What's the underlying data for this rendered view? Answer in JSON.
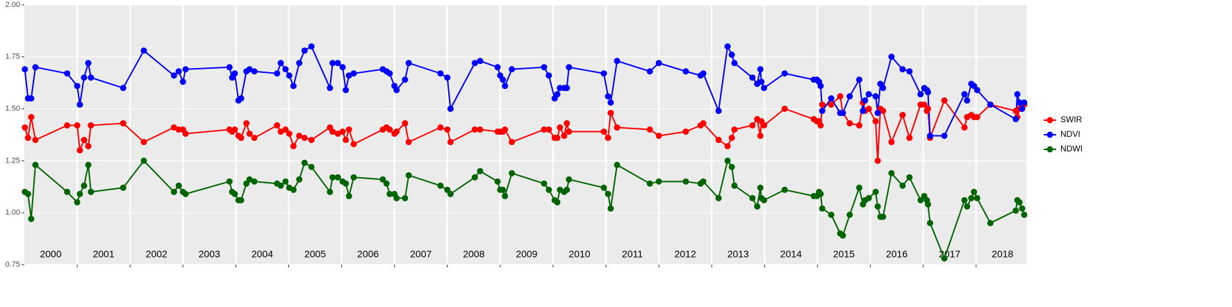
{
  "chart_data": {
    "type": "line",
    "x": [
      2000.01,
      2000.07,
      2000.13,
      2000.21,
      2000.81,
      2001.0,
      2001.05,
      2001.13,
      2001.21,
      2001.26,
      2001.87,
      2002.26,
      2002.83,
      2002.92,
      2003.0,
      2003.05,
      2003.88,
      2003.93,
      2003.98,
      2004.05,
      2004.1,
      2004.2,
      2004.26,
      2004.35,
      2004.78,
      2004.85,
      2004.94,
      2005.01,
      2005.09,
      2005.2,
      2005.3,
      2005.43,
      2005.78,
      2005.83,
      2005.93,
      2006.02,
      2006.08,
      2006.14,
      2006.23,
      2006.78,
      2006.85,
      2006.91,
      2007.0,
      2007.04,
      2007.2,
      2007.27,
      2007.87,
      2008.0,
      2008.06,
      2008.52,
      2008.62,
      2008.95,
      2009.0,
      2009.05,
      2009.09,
      2009.22,
      2009.83,
      2009.92,
      2010.03,
      2010.08,
      2010.13,
      2010.21,
      2010.26,
      2010.3,
      2010.96,
      2011.04,
      2011.09,
      2011.21,
      2011.83,
      2012.0,
      2012.51,
      2012.79,
      2012.84,
      2013.13,
      2013.3,
      2013.38,
      2013.43,
      2013.77,
      2013.86,
      2013.92,
      2013.94,
      2013.99,
      2014.38,
      2014.93,
      2014.99,
      2015.03,
      2015.06,
      2015.09,
      2015.26,
      2015.43,
      2015.48,
      2015.61,
      2015.79,
      2015.86,
      2015.9,
      2015.97,
      2016.1,
      2016.14,
      2016.19,
      2016.24,
      2016.4,
      2016.61,
      2016.74,
      2016.95,
      2017.02,
      2017.07,
      2017.09,
      2017.13,
      2017.4,
      2017.78,
      2017.83,
      2017.91,
      2017.96,
      2018.02,
      2018.27,
      2018.75,
      2018.78,
      2018.82,
      2018.87,
      2018.91
    ],
    "series": [
      {
        "name": "SWIR",
        "color": "#ff0000",
        "values": [
          1.41,
          1.36,
          1.46,
          1.35,
          1.42,
          1.42,
          1.3,
          1.35,
          1.32,
          1.42,
          1.43,
          1.34,
          1.41,
          1.4,
          1.4,
          1.38,
          1.4,
          1.39,
          1.4,
          1.37,
          1.36,
          1.43,
          1.38,
          1.36,
          1.42,
          1.39,
          1.4,
          1.38,
          1.32,
          1.37,
          1.36,
          1.35,
          1.41,
          1.39,
          1.38,
          1.39,
          1.35,
          1.4,
          1.33,
          1.4,
          1.41,
          1.4,
          1.38,
          1.39,
          1.43,
          1.34,
          1.41,
          1.4,
          1.34,
          1.4,
          1.4,
          1.39,
          1.39,
          1.39,
          1.4,
          1.34,
          1.4,
          1.4,
          1.36,
          1.36,
          1.41,
          1.37,
          1.43,
          1.39,
          1.39,
          1.36,
          1.48,
          1.41,
          1.4,
          1.37,
          1.39,
          1.42,
          1.43,
          1.35,
          1.32,
          1.36,
          1.4,
          1.42,
          1.45,
          1.37,
          1.44,
          1.42,
          1.5,
          1.45,
          1.44,
          1.44,
          1.42,
          1.52,
          1.52,
          1.56,
          1.48,
          1.43,
          1.42,
          1.53,
          1.49,
          1.5,
          1.44,
          1.25,
          1.5,
          1.49,
          1.34,
          1.47,
          1.36,
          1.52,
          1.52,
          1.49,
          1.5,
          1.36,
          1.54,
          1.41,
          1.46,
          1.47,
          1.46,
          1.46,
          1.52,
          1.49,
          1.46,
          1.5,
          1.5,
          1.52
        ]
      },
      {
        "name": "NDVI",
        "color": "#0000ff",
        "values": [
          1.69,
          1.55,
          1.55,
          1.7,
          1.67,
          1.61,
          1.52,
          1.65,
          1.72,
          1.65,
          1.6,
          1.78,
          1.66,
          1.68,
          1.63,
          1.69,
          1.7,
          1.65,
          1.67,
          1.54,
          1.55,
          1.68,
          1.69,
          1.68,
          1.67,
          1.72,
          1.69,
          1.66,
          1.61,
          1.72,
          1.78,
          1.8,
          1.6,
          1.72,
          1.72,
          1.7,
          1.59,
          1.66,
          1.67,
          1.69,
          1.68,
          1.67,
          1.61,
          1.59,
          1.64,
          1.72,
          1.67,
          1.65,
          1.5,
          1.72,
          1.73,
          1.7,
          1.66,
          1.64,
          1.61,
          1.69,
          1.7,
          1.66,
          1.55,
          1.57,
          1.6,
          1.6,
          1.6,
          1.7,
          1.67,
          1.56,
          1.53,
          1.73,
          1.68,
          1.72,
          1.68,
          1.66,
          1.67,
          1.49,
          1.8,
          1.76,
          1.72,
          1.65,
          1.62,
          1.69,
          1.63,
          1.6,
          1.67,
          1.64,
          1.64,
          1.63,
          1.61,
          1.49,
          1.55,
          1.48,
          1.48,
          1.56,
          1.64,
          1.49,
          1.54,
          1.57,
          1.56,
          1.48,
          1.62,
          1.6,
          1.75,
          1.69,
          1.68,
          1.57,
          1.6,
          1.59,
          1.58,
          1.37,
          1.37,
          1.57,
          1.54,
          1.62,
          1.61,
          1.59,
          1.52,
          1.45,
          1.57,
          1.53,
          1.5,
          1.53
        ]
      },
      {
        "name": "NDWI",
        "color": "#006400",
        "values": [
          1.1,
          1.09,
          0.97,
          1.23,
          1.1,
          1.05,
          1.09,
          1.13,
          1.23,
          1.1,
          1.12,
          1.25,
          1.1,
          1.13,
          1.1,
          1.09,
          1.15,
          1.1,
          1.09,
          1.06,
          1.06,
          1.14,
          1.16,
          1.15,
          1.14,
          1.13,
          1.15,
          1.12,
          1.11,
          1.16,
          1.24,
          1.22,
          1.1,
          1.17,
          1.17,
          1.15,
          1.14,
          1.08,
          1.17,
          1.16,
          1.14,
          1.09,
          1.09,
          1.07,
          1.07,
          1.18,
          1.13,
          1.11,
          1.09,
          1.17,
          1.2,
          1.15,
          1.11,
          1.11,
          1.08,
          1.19,
          1.14,
          1.11,
          1.06,
          1.05,
          1.11,
          1.1,
          1.11,
          1.16,
          1.12,
          1.09,
          1.02,
          1.23,
          1.14,
          1.15,
          1.15,
          1.14,
          1.15,
          1.07,
          1.25,
          1.22,
          1.13,
          1.07,
          1.03,
          1.12,
          1.07,
          1.06,
          1.11,
          1.08,
          1.08,
          1.1,
          1.09,
          1.02,
          0.99,
          0.9,
          0.89,
          0.99,
          1.12,
          1.04,
          1.06,
          1.07,
          1.1,
          1.03,
          0.98,
          0.98,
          1.19,
          1.13,
          1.17,
          1.06,
          1.08,
          1.06,
          1.04,
          0.95,
          0.78,
          1.06,
          1.03,
          1.07,
          1.1,
          1.07,
          0.95,
          1.01,
          1.06,
          1.05,
          1.02,
          0.99
        ]
      }
    ],
    "xlim": [
      2000,
      2018.95
    ],
    "xticks": [
      2001,
      2002,
      2003,
      2004,
      2005,
      2006,
      2007,
      2008,
      2009,
      2010,
      2011,
      2012,
      2013,
      2014,
      2015,
      2016,
      2017,
      2018
    ],
    "year_labels": [
      {
        "value": 2000.5,
        "label": "2000"
      },
      {
        "value": 2001.5,
        "label": "2001"
      },
      {
        "value": 2002.5,
        "label": "2002"
      },
      {
        "value": 2003.5,
        "label": "2003"
      },
      {
        "value": 2004.5,
        "label": "2004"
      },
      {
        "value": 2005.5,
        "label": "2005"
      },
      {
        "value": 2006.5,
        "label": "2006"
      },
      {
        "value": 2007.5,
        "label": "2007"
      },
      {
        "value": 2008.5,
        "label": "2008"
      },
      {
        "value": 2009.5,
        "label": "2009"
      },
      {
        "value": 2010.5,
        "label": "2010"
      },
      {
        "value": 2011.5,
        "label": "2011"
      },
      {
        "value": 2012.5,
        "label": "2012"
      },
      {
        "value": 2013.5,
        "label": "2013"
      },
      {
        "value": 2014.5,
        "label": "2014"
      },
      {
        "value": 2015.5,
        "label": "2015"
      },
      {
        "value": 2016.5,
        "label": "2016"
      },
      {
        "value": 2017.5,
        "label": "2017"
      },
      {
        "value": 2018.5,
        "label": "2018"
      }
    ],
    "ylim": [
      0.75,
      2.0
    ],
    "yticks": [
      {
        "value": 0.75,
        "label": "0.75"
      },
      {
        "value": 1.0,
        "label": "1.00"
      },
      {
        "value": 1.25,
        "label": "1.25"
      },
      {
        "value": 1.5,
        "label": "1.50"
      },
      {
        "value": 1.75,
        "label": "1.75"
      },
      {
        "value": 2.0,
        "label": "2.00"
      }
    ],
    "grid": true,
    "legend": "right"
  }
}
